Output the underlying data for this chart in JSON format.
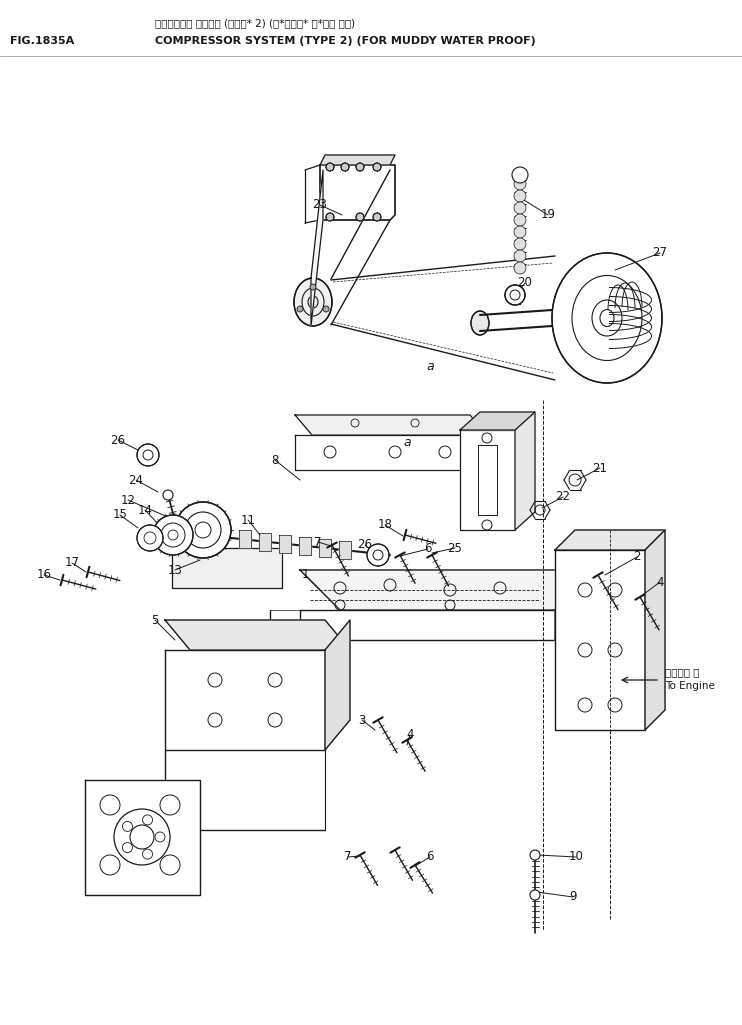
{
  "fig_label": "FIG.1835A",
  "title_jp": "エンプレッサ システム (タイプ* 2) (ト*ロミス* ホ*ウジ ヨウ)",
  "title_en": "COMPRESSOR SYSTEM (TYPE 2) (FOR MUDDY WATER PROOF)",
  "bg_color": "#ffffff",
  "lc": "#1a1a1a",
  "fig_size": [
    7.42,
    10.25
  ],
  "dpi": 100,
  "note_jp": "エンジンへ",
  "note_en": "To Engine"
}
